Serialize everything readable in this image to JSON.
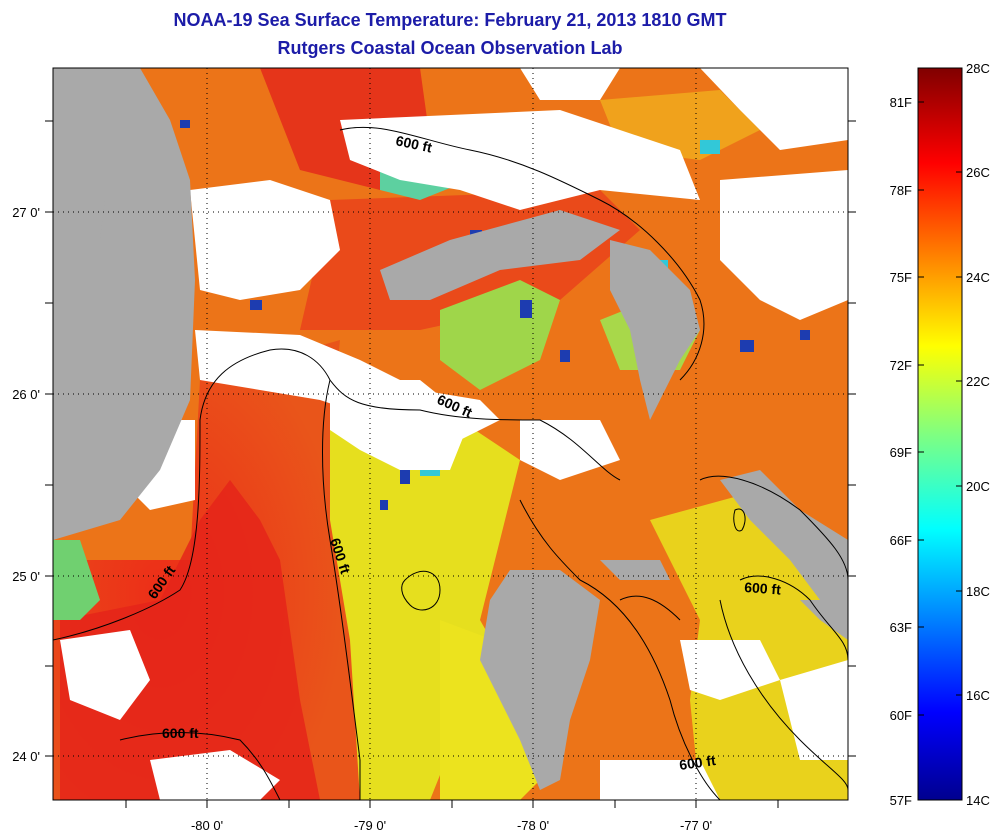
{
  "title": {
    "line1": "NOAA-19 Sea Surface Temperature:  February 21, 2013 1810 GMT",
    "line2": "Rutgers Coastal Ocean Observation Lab"
  },
  "map": {
    "lon_ticks": [
      "-80 0'",
      "-79 0'",
      "-78 0'",
      "-77 0'"
    ],
    "lat_ticks": [
      "27 0'",
      "26 0'",
      "25 0'",
      "24 0'"
    ],
    "contour_label": "600 ft",
    "colors": {
      "land": "#a9a9a9",
      "cloud": "#ffffff",
      "warm_red": "#e8301a",
      "orange": "#ec7a1a",
      "yellow": "#e7e21c",
      "green": "#8ed84a",
      "cyan": "#2fd0c8",
      "blue": "#1a3aa8"
    }
  },
  "colorbar": {
    "celsius": [
      "28C",
      "26C",
      "24C",
      "22C",
      "20C",
      "18C",
      "16C",
      "14C"
    ],
    "fahrenheit": [
      "81F",
      "78F",
      "75F",
      "72F",
      "69F",
      "66F",
      "63F",
      "60F",
      "57F"
    ]
  }
}
